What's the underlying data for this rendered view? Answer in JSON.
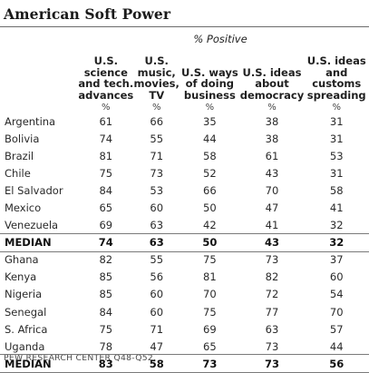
{
  "title": "American Soft Power",
  "subtitle": "% Positive",
  "source": "PEW RESEARCH CENTER Q48-Q52.",
  "unit_label": "%",
  "chart_data": {
    "type": "table",
    "title": "American Soft Power",
    "subtitle": "% Positive",
    "columns": [
      "U.S. science and tech. advances",
      "U.S. music, movies, TV",
      "U.S. ways of doing business",
      "U.S. ideas about democracy",
      "U.S. ideas and customs spreading"
    ],
    "column_header_lines": [
      [
        "U.S.",
        "science",
        "and tech.",
        "advances"
      ],
      [
        "U.S.",
        "music,",
        "movies,",
        "TV"
      ],
      [
        "U.S. ways",
        "of doing",
        "business"
      ],
      [
        "U.S. ideas",
        "about",
        "democracy"
      ],
      [
        "U.S. ideas",
        "and",
        "customs",
        "spreading"
      ]
    ],
    "groups": [
      {
        "rows": [
          {
            "country": "Argentina",
            "values": [
              61,
              66,
              35,
              38,
              31
            ]
          },
          {
            "country": "Bolivia",
            "values": [
              74,
              55,
              44,
              38,
              31
            ]
          },
          {
            "country": "Brazil",
            "values": [
              81,
              71,
              58,
              61,
              53
            ]
          },
          {
            "country": "Chile",
            "values": [
              75,
              73,
              52,
              43,
              31
            ]
          },
          {
            "country": "El Salvador",
            "values": [
              84,
              53,
              66,
              70,
              58
            ]
          },
          {
            "country": "Mexico",
            "values": [
              65,
              60,
              50,
              47,
              41
            ]
          },
          {
            "country": "Venezuela",
            "values": [
              69,
              63,
              42,
              41,
              32
            ]
          }
        ],
        "median": {
          "country": "MEDIAN",
          "values": [
            74,
            63,
            50,
            43,
            32
          ]
        }
      },
      {
        "rows": [
          {
            "country": "Ghana",
            "values": [
              82,
              55,
              75,
              73,
              37
            ]
          },
          {
            "country": "Kenya",
            "values": [
              85,
              56,
              81,
              82,
              60
            ]
          },
          {
            "country": "Nigeria",
            "values": [
              85,
              60,
              70,
              72,
              54
            ]
          },
          {
            "country": "Senegal",
            "values": [
              84,
              60,
              75,
              77,
              70
            ]
          },
          {
            "country": "S. Africa",
            "values": [
              75,
              71,
              69,
              63,
              57
            ]
          },
          {
            "country": "Uganda",
            "values": [
              78,
              47,
              65,
              73,
              44
            ]
          }
        ],
        "median": {
          "country": "MEDIAN",
          "values": [
            83,
            58,
            73,
            73,
            56
          ]
        }
      }
    ]
  }
}
